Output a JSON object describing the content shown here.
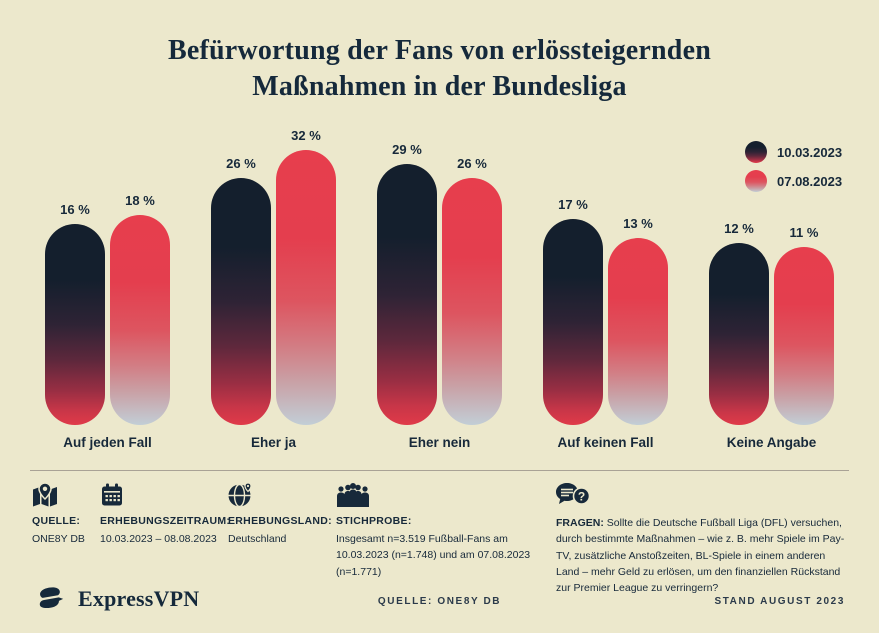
{
  "page": {
    "background_color": "#ECE8CC",
    "navy_color": "#17293A",
    "red_color": "#E23D4B",
    "fade_bottom_color": "#C2CED6"
  },
  "title": {
    "line1": "Befürwortung der Fans von erlössteigernden",
    "line2": "Maßnahmen in der Bundesliga"
  },
  "legend": {
    "items": [
      {
        "label": "10.03.2023",
        "swatch": "dark-gradient-circle"
      },
      {
        "label": "07.08.2023",
        "swatch": "red-gradient-circle"
      }
    ]
  },
  "chart_data": {
    "type": "bar",
    "title": "Befürwortung der Fans von erlössteigernden Maßnahmen in der Bundesliga",
    "categories": [
      "Auf jeden Fall",
      "Eher ja",
      "Eher nein",
      "Auf keinen Fall",
      "Keine Angabe"
    ],
    "series": [
      {
        "name": "10.03.2023",
        "style": "dark",
        "values": [
          16,
          26,
          29,
          17,
          12
        ]
      },
      {
        "name": "07.08.2023",
        "style": "red",
        "values": [
          18,
          32,
          26,
          13,
          11
        ]
      }
    ],
    "value_suffix": " %",
    "unit": "percent",
    "ylim": [
      0,
      35
    ],
    "grid": false,
    "legend_position": "top-right",
    "bar_shape": "rounded-pill"
  },
  "footer": {
    "sections": [
      {
        "icon": "map-pin-icon",
        "label": "QUELLE:",
        "text": "ONE8Y DB"
      },
      {
        "icon": "calendar-icon",
        "label": "ERHEBUNGSZEITRAUM:",
        "text": "10.03.2023 – 08.08.2023"
      },
      {
        "icon": "globe-icon",
        "label": "ERHEBUNGSLAND:",
        "text": "Deutschland"
      },
      {
        "icon": "people-icon",
        "label": "STICHPROBE:",
        "text": "Insgesamt n=3.519 Fußball-Fans am 10.03.2023 (n=1.748) und am 07.08.2023 (n=1.771)"
      },
      {
        "icon": "speech-question-icon",
        "label": "FRAGEN:",
        "text": "Sollte die Deutsche Fußball Liga (DFL) versuchen, durch bestimmte Maßnahmen – wie z. B. mehr Spiele im Pay-TV, zusätzliche Anstoßzeiten, BL-Spiele in einem anderen Land – mehr Geld zu erlösen, um den finanziellen Rückstand zur Premier League zu verringern?"
      }
    ]
  },
  "bottom": {
    "brand": "ExpressVPN",
    "source": "QUELLE: ONE8Y DB",
    "stand": "STAND AUGUST 2023"
  }
}
